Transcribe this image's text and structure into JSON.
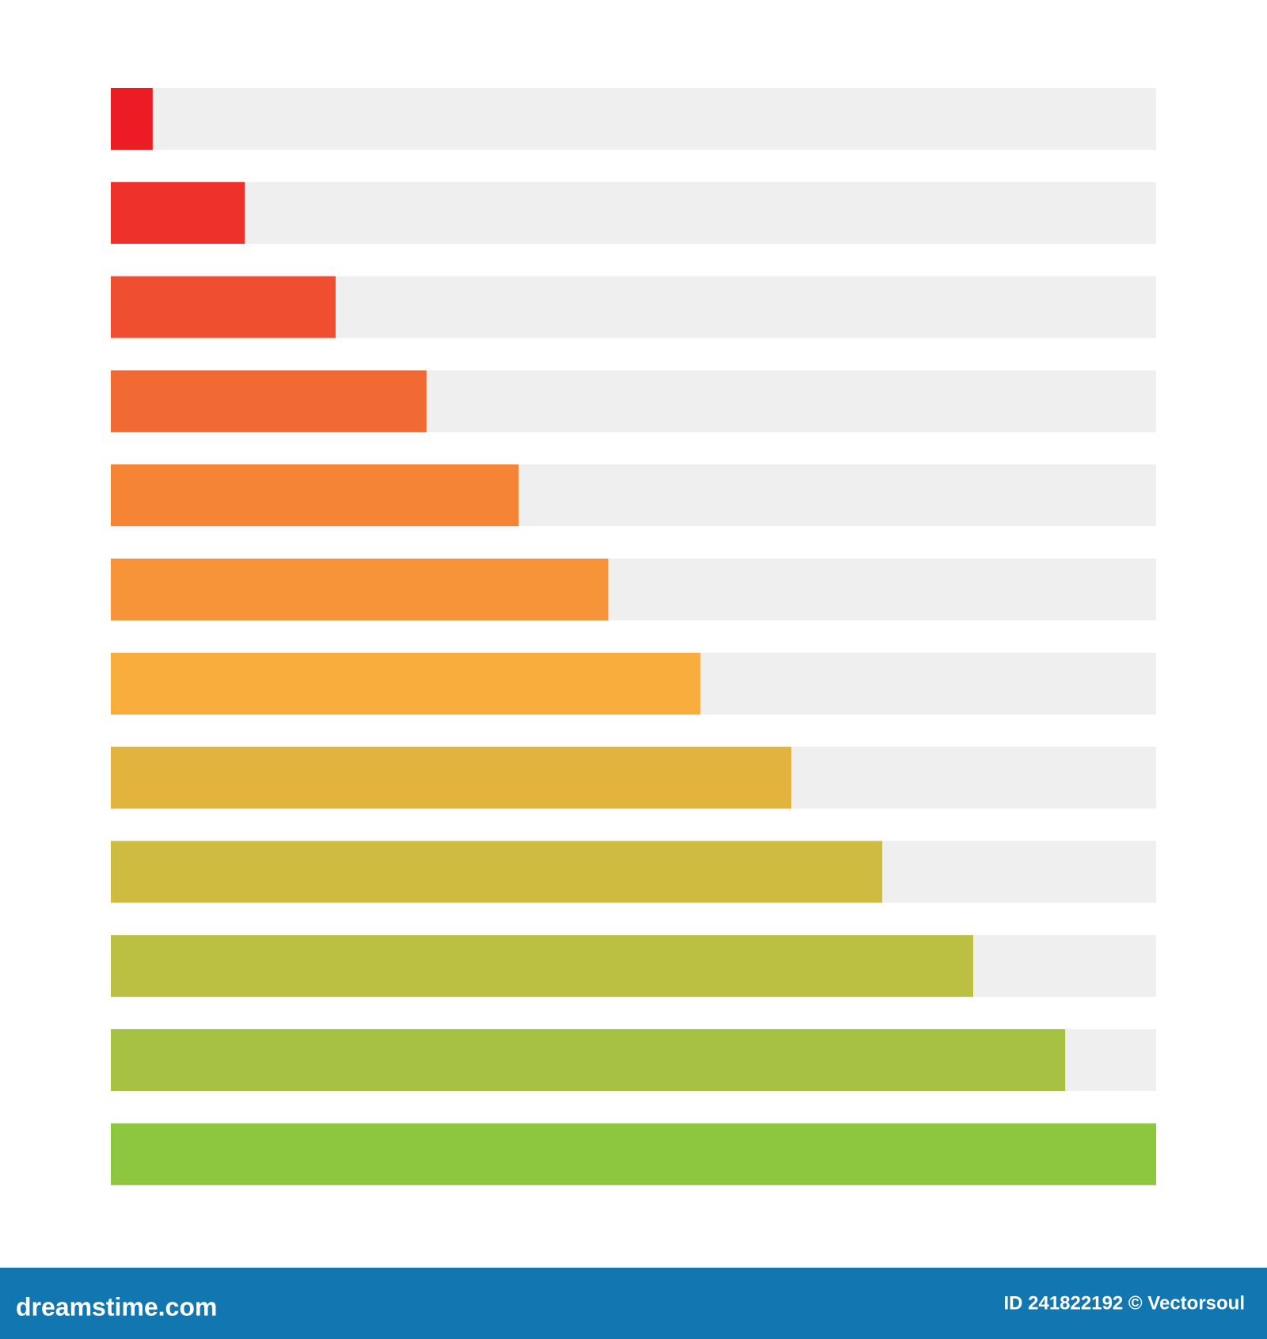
{
  "chart_data": {
    "type": "progress",
    "values": [
      4,
      12.8,
      21.5,
      30.2,
      39,
      47.6,
      56.4,
      65.1,
      73.8,
      82.5,
      91.3,
      100
    ],
    "colors": [
      "#ed1c24",
      "#ee312a",
      "#f04e30",
      "#f26a33",
      "#f58535",
      "#f7943a",
      "#f9ad3c",
      "#e2b43d",
      "#cfbb3f",
      "#bbbf42",
      "#a7c243",
      "#8dc63f"
    ],
    "track_color": "#efefef",
    "xlim": [
      0,
      100
    ]
  },
  "footer": {
    "brand": "dreamstime.com",
    "credit": "ID 241822192 © Vectorsoul"
  }
}
